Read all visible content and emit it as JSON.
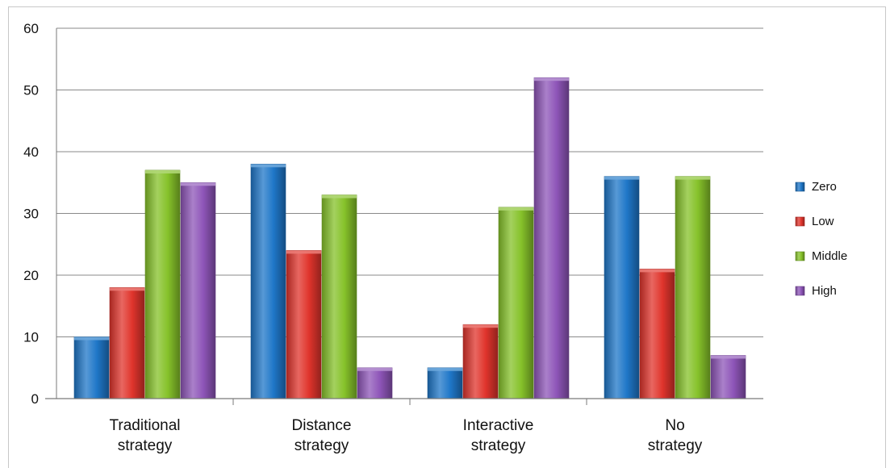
{
  "chart_data": {
    "type": "bar",
    "title": "",
    "xlabel": "",
    "ylabel": "",
    "categories": [
      [
        "Traditional",
        "strategy"
      ],
      [
        "Distance",
        "strategy"
      ],
      [
        "Interactive",
        "strategy"
      ],
      [
        "No",
        "strategy"
      ]
    ],
    "series": [
      {
        "name": "Zero",
        "values": [
          10,
          38,
          5,
          36
        ],
        "color": "#1f77c8"
      },
      {
        "name": "Low",
        "values": [
          18,
          24,
          12,
          21
        ],
        "color": "#e0342c"
      },
      {
        "name": "Middle",
        "values": [
          37,
          33,
          31,
          36
        ],
        "color": "#86c22a"
      },
      {
        "name": "High",
        "values": [
          35,
          5,
          52,
          7
        ],
        "color": "#8e55b8"
      }
    ],
    "ylim": [
      0,
      60
    ],
    "yticks": [
      0,
      10,
      20,
      30,
      40,
      50,
      60
    ],
    "grid": true,
    "legend": "right"
  }
}
